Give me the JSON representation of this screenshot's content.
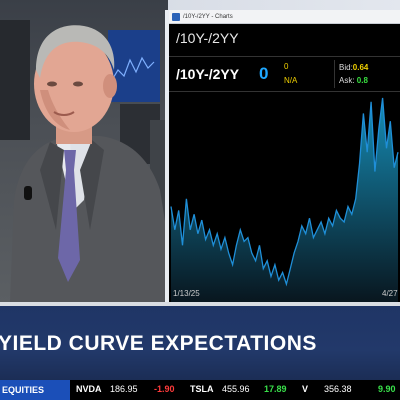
{
  "chart_panel": {
    "window_title": "/10Y-/2YY - Charts",
    "symbol_header": "/10Y-/2YY",
    "quote": {
      "symbol": "/10Y-/2YY",
      "last": "0",
      "change": "0",
      "percent": "N/A",
      "bid_label": "Bid:",
      "bid_value": "0.64",
      "ask_label": "Ask:",
      "ask_value": "0.8"
    },
    "x_start": "1/13/25",
    "x_end": "4/27"
  },
  "chart_data": {
    "type": "area",
    "title": "",
    "xlabel": "",
    "ylabel": "",
    "x_start_label": "1/13/25",
    "x_end_label": "4/27",
    "values": [
      0.42,
      0.3,
      0.4,
      0.22,
      0.46,
      0.3,
      0.38,
      0.28,
      0.35,
      0.25,
      0.3,
      0.22,
      0.28,
      0.2,
      0.26,
      0.18,
      0.12,
      0.22,
      0.3,
      0.24,
      0.26,
      0.18,
      0.14,
      0.22,
      0.1,
      0.14,
      0.06,
      0.12,
      0.04,
      0.08,
      0.02,
      0.1,
      0.18,
      0.24,
      0.32,
      0.28,
      0.36,
      0.26,
      0.3,
      0.34,
      0.28,
      0.36,
      0.32,
      0.4,
      0.36,
      0.34,
      0.42,
      0.38,
      0.46,
      0.64,
      0.9,
      0.7,
      0.96,
      0.6,
      0.82,
      0.98,
      0.72,
      0.86,
      0.62,
      0.7
    ],
    "line_color": "#1f8fd8",
    "fill_top": "#1aa6d6",
    "fill_bottom": "#0a1a24"
  },
  "banner": {
    "title": "YIELD CURVE EXPECTATIONS"
  },
  "ticker": {
    "label": "EQUITIES",
    "items": [
      {
        "symbol": "NVDA",
        "price": "186.95",
        "change": "-1.90",
        "dir": "down"
      },
      {
        "symbol": "TSLA",
        "price": "455.96",
        "change": "17.89",
        "dir": "up"
      },
      {
        "symbol": "V",
        "price": "356.38",
        "change": "9.90",
        "dir": "up"
      }
    ]
  }
}
